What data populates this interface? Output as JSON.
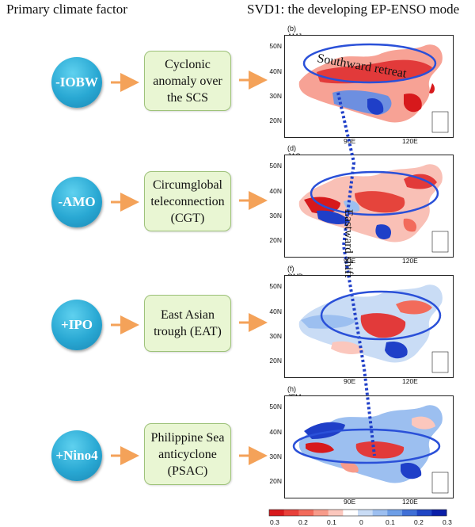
{
  "header": {
    "left_title": "Primary climate factor",
    "right_title": "SVD1: the developing EP-ENSO mode"
  },
  "factors": [
    {
      "label": "-IOBW"
    },
    {
      "label": "-AMO"
    },
    {
      "label": "+IPO"
    },
    {
      "label": "+Nino4"
    }
  ],
  "mechanisms": [
    {
      "lines": [
        "Cyclonic",
        "anomaly over",
        "the SCS"
      ]
    },
    {
      "lines": [
        "Circumglobal",
        "teleconnection",
        "(CGT)"
      ]
    },
    {
      "lines": [
        "East Asian",
        "trough (EAT)"
      ]
    },
    {
      "lines": [
        "Philippine Sea",
        "anticyclone",
        "(PSAC)"
      ]
    }
  ],
  "panels": [
    {
      "label": "(b) AMJ"
    },
    {
      "label": "(d) JAS"
    },
    {
      "label": "(f) OND"
    },
    {
      "label": "(h) JFM"
    }
  ],
  "axes": {
    "lat_ticks": [
      "50N",
      "40N",
      "30N",
      "20N"
    ],
    "lon_ticks": [
      "90E",
      "120E"
    ]
  },
  "annotations": {
    "retreat": "Southward retreat",
    "shift": "Eastward shift"
  },
  "colorbar": {
    "labels": [
      "0.3",
      "0.2",
      "0.1",
      "0",
      "0.1",
      "0.2",
      "0.3"
    ],
    "colors": [
      "#d7191c",
      "#e8413a",
      "#f26b5b",
      "#f79b8a",
      "#fbc7bd",
      "#ffffff",
      "#c9dcf5",
      "#9cbff0",
      "#6d9ee6",
      "#3f6fd6",
      "#1f45c4",
      "#0b1fa8"
    ]
  },
  "colors": {
    "arrow": "#f4a259",
    "ellipse": "#2a50d8",
    "dotted": "#1f3fc8"
  }
}
